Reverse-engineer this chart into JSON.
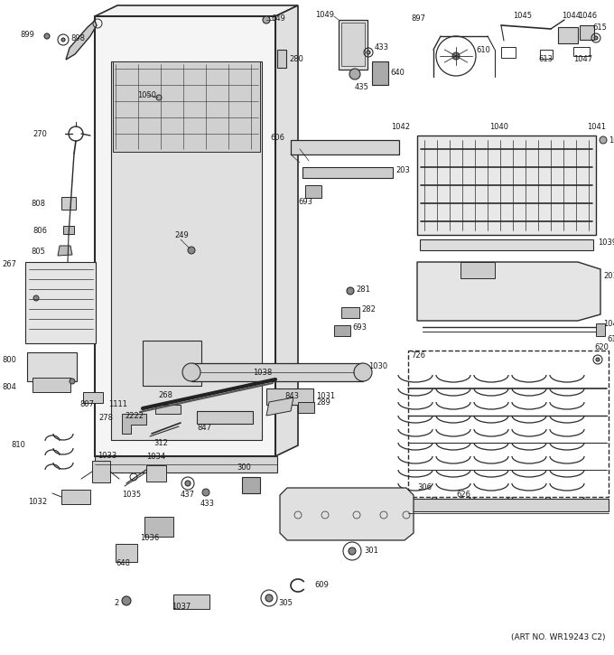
{
  "art_no": "(ART NO. WR19243 C2)",
  "bg_color": "#ffffff",
  "line_color": "#2a2a2a",
  "text_color": "#1a1a1a",
  "figsize": [
    6.8,
    7.25
  ],
  "dpi": 100
}
